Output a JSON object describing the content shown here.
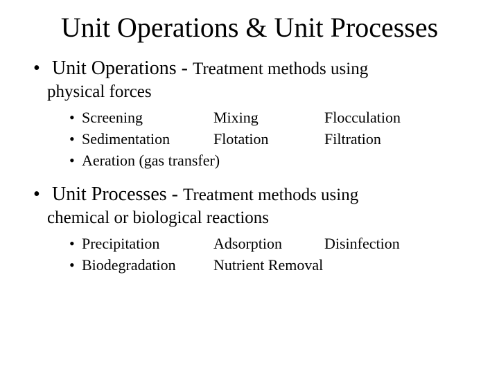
{
  "title": "Unit Operations & Unit Processes",
  "section1": {
    "lead": "Unit Operations - ",
    "desc": "Treatment methods using",
    "cont": "physical forces",
    "rows": {
      "r1": {
        "c1": "Screening",
        "c2": "Mixing",
        "c3": "Flocculation"
      },
      "r2": {
        "c1": "Sedimentation",
        "c2": "Flotation",
        "c3": "Filtration"
      },
      "r3": {
        "c1": "Aeration (gas transfer)"
      }
    }
  },
  "section2": {
    "lead": "Unit Processes - ",
    "desc": "Treatment methods using",
    "cont": "chemical or biological reactions",
    "rows": {
      "r1": {
        "c1": "Precipitation",
        "c2": "Adsorption",
        "c3": "Disinfection"
      },
      "r2": {
        "c1": "Biodegradation",
        "c2": "Nutrient Removal"
      }
    }
  },
  "colors": {
    "text": "#000000",
    "background": "#ffffff"
  },
  "fonts": {
    "title_size_pt": 40,
    "main_size_pt": 28,
    "desc_size_pt": 25,
    "sub_size_pt": 22,
    "family": "Times New Roman"
  }
}
